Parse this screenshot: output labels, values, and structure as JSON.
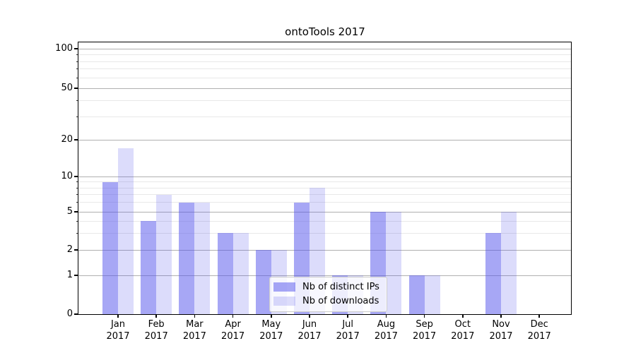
{
  "title": "ontoTools 2017",
  "chart_data": {
    "type": "bar",
    "title": "ontoTools 2017",
    "categories": [
      "Jan 2017",
      "Feb 2017",
      "Mar 2017",
      "Apr 2017",
      "May 2017",
      "Jun 2017",
      "Jul 2017",
      "Aug 2017",
      "Sep 2017",
      "Oct 2017",
      "Nov 2017",
      "Dec 2017"
    ],
    "series": [
      {
        "name": "Nb of distinct IPs",
        "fill": "rgba(80,80,235,0.5)",
        "values": [
          9,
          4,
          6,
          3,
          2,
          6,
          1,
          5,
          1,
          0,
          3,
          0
        ]
      },
      {
        "name": "Nb of downloads",
        "fill": "rgba(80,80,235,0.2)",
        "values": [
          17,
          7,
          6,
          3,
          2,
          8,
          1,
          5,
          1,
          0,
          5,
          0
        ]
      }
    ],
    "xlabel": "",
    "ylabel": "",
    "yscale": "log",
    "ylim": [
      0,
      100
    ],
    "yticks": [
      100,
      50,
      20,
      10,
      5,
      2,
      1,
      0
    ],
    "yticks_minor": [
      3,
      4,
      6,
      7,
      8,
      9,
      30,
      40,
      60,
      70,
      80,
      90
    ],
    "grid": true,
    "legend_position": "lower center inside plot",
    "colors": {
      "grid_major": "#b0b0b0",
      "grid_minor": "#e8e8e8",
      "spine": "#000000",
      "text": "#000000",
      "legend_bg": "rgba(255,255,255,0.8)",
      "legend_border": "#cccccc"
    }
  }
}
